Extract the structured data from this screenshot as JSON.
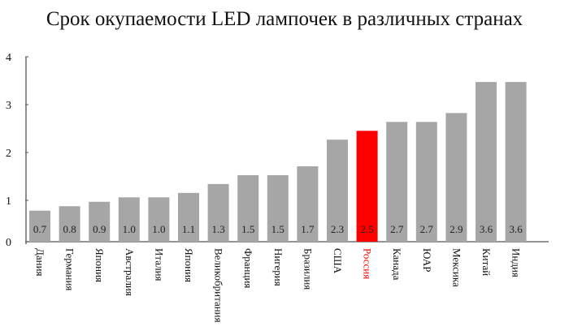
{
  "chart_data": {
    "type": "bar",
    "title": "Срок окупаемости LED лампочек в различных странах",
    "xlabel": "",
    "ylabel": "",
    "ylim": [
      0,
      4
    ],
    "yticks": [
      "0",
      "1",
      "2",
      "3",
      "4"
    ],
    "grid": false,
    "categories": [
      "Дания",
      "Германия",
      "Япония",
      "Австралия",
      "Италия",
      "Япония",
      "Великобритания",
      "Франция",
      "Нигерия",
      "Бразилия",
      "США",
      "Россия",
      "Канада",
      "ЮАР",
      "Мексика",
      "Китай",
      "Индия"
    ],
    "values": [
      0.7,
      0.8,
      0.9,
      1.0,
      1.0,
      1.1,
      1.3,
      1.5,
      1.5,
      1.7,
      2.3,
      2.5,
      2.7,
      2.7,
      2.9,
      3.6,
      3.6
    ],
    "value_labels": [
      "0.7",
      "0.8",
      "0.9",
      "1.0",
      "1.0",
      "1.1",
      "1.3",
      "1.5",
      "1.5",
      "1.7",
      "2.3",
      "2.5",
      "2.7",
      "2.7",
      "2.9",
      "3.6",
      "3.6"
    ],
    "highlight": "Россия",
    "colors": {
      "bar": "#a6a6a6",
      "highlight": "#ff0000",
      "highlight_label": "#ff0000",
      "axis": "#555555",
      "text": "#111111"
    }
  }
}
